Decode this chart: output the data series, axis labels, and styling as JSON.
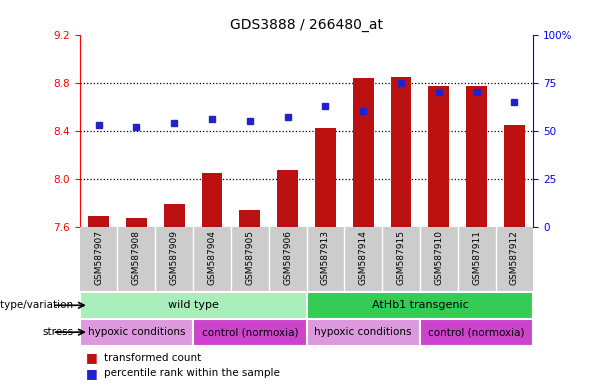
{
  "title": "GDS3888 / 266480_at",
  "samples": [
    "GSM587907",
    "GSM587908",
    "GSM587909",
    "GSM587904",
    "GSM587905",
    "GSM587906",
    "GSM587913",
    "GSM587914",
    "GSM587915",
    "GSM587910",
    "GSM587911",
    "GSM587912"
  ],
  "red_values": [
    7.69,
    7.67,
    7.79,
    8.05,
    7.74,
    8.07,
    8.42,
    8.84,
    8.85,
    8.77,
    8.77,
    8.45
  ],
  "blue_values": [
    53,
    52,
    54,
    56,
    55,
    57,
    63,
    60,
    75,
    70,
    70,
    65
  ],
  "ylim_left": [
    7.6,
    9.2
  ],
  "ylim_right": [
    0,
    100
  ],
  "yticks_left": [
    7.6,
    8.0,
    8.4,
    8.8,
    9.2
  ],
  "yticks_right": [
    0,
    25,
    50,
    75,
    100
  ],
  "ytick_labels_right": [
    "0",
    "25",
    "50",
    "75",
    "100%"
  ],
  "bar_color": "#bb1111",
  "dot_color": "#2222cc",
  "genotype_groups": [
    {
      "label": "wild type",
      "start": 0,
      "end": 6,
      "color": "#aaeebb"
    },
    {
      "label": "AtHb1 transgenic",
      "start": 6,
      "end": 12,
      "color": "#33cc55"
    }
  ],
  "stress_groups": [
    {
      "label": "hypoxic conditions",
      "start": 0,
      "end": 3,
      "color": "#dd99dd"
    },
    {
      "label": "control (normoxia)",
      "start": 3,
      "end": 6,
      "color": "#cc44cc"
    },
    {
      "label": "hypoxic conditions",
      "start": 6,
      "end": 9,
      "color": "#dd99dd"
    },
    {
      "label": "control (normoxia)",
      "start": 9,
      "end": 12,
      "color": "#cc44cc"
    }
  ],
  "xlabel_genotype": "genotype/variation",
  "xlabel_stress": "stress",
  "legend_red": "transformed count",
  "legend_blue": "percentile rank within the sample",
  "tick_bg_color": "#cccccc",
  "gridline_ticks": [
    8.0,
    8.4,
    8.8
  ]
}
